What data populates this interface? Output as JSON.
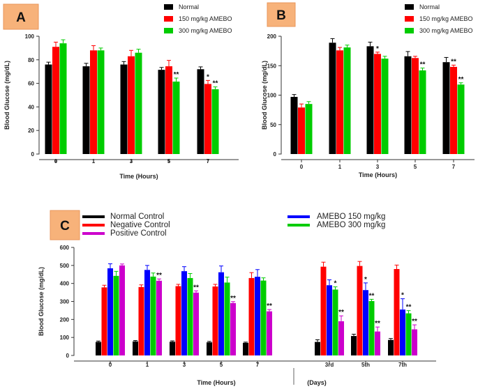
{
  "chart_data": [
    {
      "panel": "A",
      "type": "bar",
      "ylabel": "Blood Glucose (mg/dL)",
      "xlabel": "Time (Hours)",
      "ylim": [
        0,
        100
      ],
      "yticks": [
        "0",
        "20",
        "40",
        "60",
        "80",
        "100"
      ],
      "categories": [
        "0",
        "1",
        "3",
        "5",
        "7"
      ],
      "series": [
        {
          "name": "Normal",
          "color": "#000000",
          "values": [
            76,
            74.5,
            76,
            71.5,
            72
          ],
          "errors": [
            2,
            2.5,
            2.5,
            2,
            2
          ],
          "sig": [
            "",
            "",
            "",
            "",
            ""
          ]
        },
        {
          "name": "150 mg/kg AMEBO",
          "color": "#ff0000",
          "values": [
            91,
            88,
            83,
            74.5,
            59.5
          ],
          "errors": [
            4,
            4,
            5,
            5,
            3
          ],
          "sig": [
            "",
            "",
            "",
            "",
            "*"
          ]
        },
        {
          "name": "300 mg/kg AMEBO",
          "color": "#00cc00",
          "values": [
            94,
            88,
            86,
            61.5,
            55
          ],
          "errors": [
            3,
            2,
            3,
            3,
            2
          ],
          "sig": [
            "",
            "",
            "",
            "**",
            "**"
          ]
        }
      ]
    },
    {
      "panel": "B",
      "type": "bar",
      "ylabel": "Blood Glucose (mg/dL)",
      "xlabel": "Time (Hours)",
      "ylim": [
        0,
        200
      ],
      "yticks": [
        "0",
        "50",
        "100",
        "150",
        "200"
      ],
      "categories": [
        "0",
        "1",
        "3",
        "5",
        "7"
      ],
      "series": [
        {
          "name": "Normal",
          "color": "#000000",
          "values": [
            97,
            189,
            183,
            166,
            156
          ],
          "errors": [
            4,
            7,
            7,
            8,
            8
          ],
          "sig": [
            "",
            "",
            "",
            "",
            ""
          ]
        },
        {
          "name": "150 mg/kg AMEBO",
          "color": "#ff0000",
          "values": [
            79,
            176,
            170,
            163,
            148
          ],
          "errors": [
            6,
            5,
            3,
            3,
            3
          ],
          "sig": [
            "",
            "",
            "*",
            "",
            "**"
          ]
        },
        {
          "name": "300 mg/kg AMEBO",
          "color": "#00cc00",
          "values": [
            85,
            181,
            162,
            142,
            118
          ],
          "errors": [
            4,
            4,
            4,
            4,
            3
          ],
          "sig": [
            "",
            "",
            "",
            "**",
            "**"
          ]
        }
      ]
    },
    {
      "panel": "C",
      "type": "bar",
      "ylabel": "Blood Glucose (mg/dL)",
      "xlabel": "Time (Hours)",
      "xlabel2": "(Days)",
      "ylim": [
        0,
        600
      ],
      "yticks": [
        "0",
        "100",
        "200",
        "300",
        "400",
        "500",
        "600"
      ],
      "categories": [
        "0",
        "1",
        "3",
        "5",
        "7",
        "3rd",
        "5th",
        "7th"
      ],
      "series": [
        {
          "name": "Normal Control",
          "color": "#000000",
          "values": [
            75,
            78,
            76,
            73,
            70,
            75,
            108,
            86
          ],
          "errors": [
            5,
            5,
            5,
            5,
            4,
            12,
            10,
            8
          ],
          "sig": [
            "",
            "",
            "",
            "",
            "",
            "",
            "",
            ""
          ]
        },
        {
          "name": "Negative Control",
          "color": "#ff0000",
          "values": [
            378,
            380,
            385,
            383,
            430,
            493,
            497,
            480
          ],
          "errors": [
            12,
            12,
            10,
            12,
            30,
            25,
            25,
            22
          ],
          "sig": [
            "",
            "",
            "",
            "",
            "",
            "",
            "",
            ""
          ]
        },
        {
          "name": "AMEBO 150 mg/kg",
          "color": "#0000ff",
          "values": [
            484,
            475,
            468,
            462,
            437,
            390,
            363,
            255
          ],
          "errors": [
            25,
            25,
            25,
            35,
            40,
            30,
            40,
            60
          ],
          "sig": [
            "",
            "",
            "",
            "",
            "",
            "",
            "*",
            "*"
          ]
        },
        {
          "name": "AMEBO 300 mg/kg",
          "color": "#00cc00",
          "values": [
            442,
            438,
            430,
            405,
            416,
            366,
            302,
            234
          ],
          "errors": [
            25,
            20,
            25,
            30,
            15,
            15,
            10,
            15
          ],
          "sig": [
            "",
            "",
            "",
            "",
            "",
            "*",
            "**",
            "**"
          ]
        },
        {
          "name": "Positive Control",
          "color": "#cc00cc",
          "values": [
            500,
            415,
            349,
            291,
            245,
            190,
            133,
            145
          ],
          "errors": [
            8,
            10,
            10,
            8,
            10,
            30,
            25,
            25
          ],
          "sig": [
            "",
            "**",
            "**",
            "**",
            "**",
            "**",
            "**",
            "**"
          ]
        }
      ],
      "legend": {
        "left": [
          "Normal Control",
          "Negative Control",
          "Positive Control"
        ],
        "right": [
          "AMEBO 150 mg/kg",
          "AMEBO 300 mg/kg"
        ]
      }
    }
  ]
}
